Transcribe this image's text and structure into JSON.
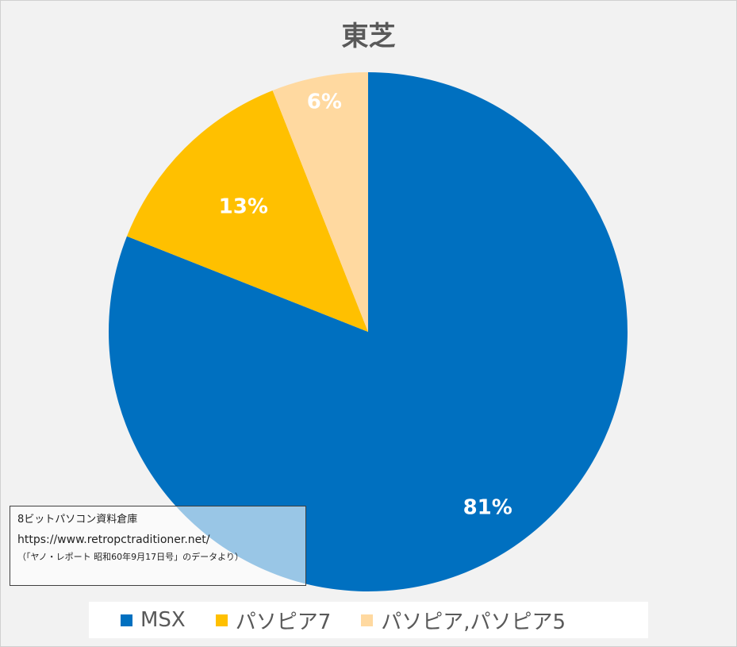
{
  "chart_data": {
    "type": "pie",
    "title": "東芝",
    "slices": [
      {
        "label": "MSX",
        "value": 81,
        "display": "81%",
        "color": "#0070C0"
      },
      {
        "label": "パソピア7",
        "value": 13,
        "display": "13%",
        "color": "#FFC000"
      },
      {
        "label": "パソピア,パソピア5",
        "value": 6,
        "display": "6%",
        "color": "#FFD9A0"
      }
    ],
    "start_angle": "12 o'clock",
    "direction": "clockwise",
    "legend_position": "bottom"
  },
  "source": {
    "line1": "8ビットパソコン資料倉庫",
    "line2": "https://www.retropctraditioner.net/",
    "line3": "（「ヤノ・レポート 昭和60年9月17日号」のデータより）"
  }
}
